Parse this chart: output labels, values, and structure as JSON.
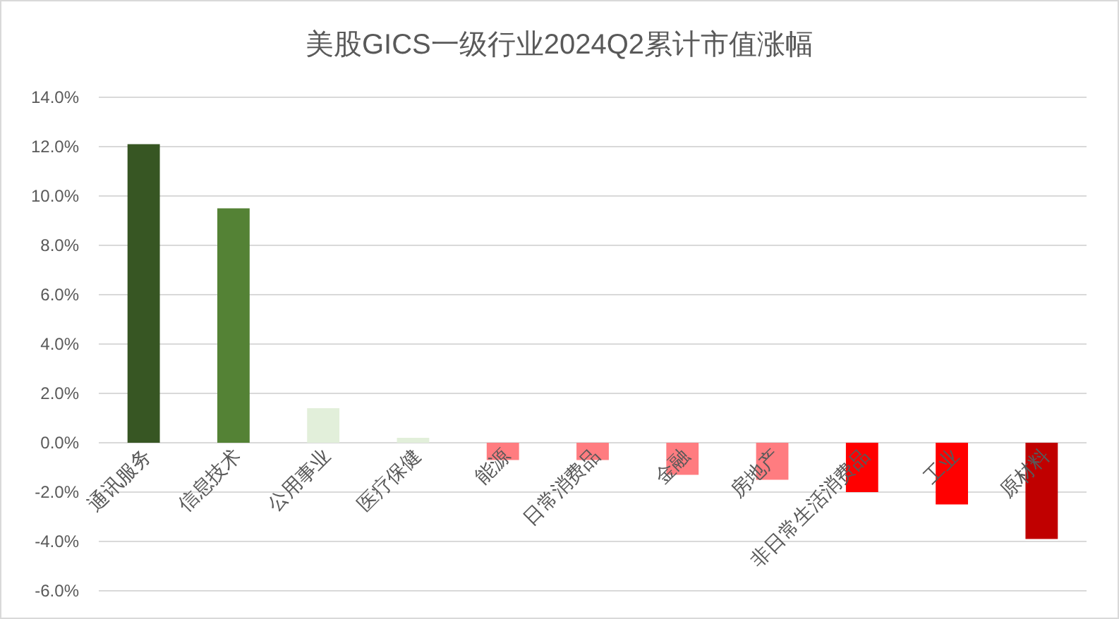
{
  "chart_data": {
    "type": "bar",
    "title": "美股GICS一级行业2024Q2累计市值涨幅",
    "categories": [
      "通讯服务",
      "信息技术",
      "公用事业",
      "医疗保健",
      "能源",
      "日常消费品",
      "金融",
      "房地产",
      "非日常生活消费品",
      "工业",
      "原材料"
    ],
    "values": [
      12.1,
      9.5,
      1.4,
      0.2,
      -0.7,
      -0.7,
      -1.3,
      -1.5,
      -2.0,
      -2.5,
      -3.9
    ],
    "colors": [
      "#375623",
      "#548235",
      "#e2efda",
      "#e2efda",
      "#ff7c80",
      "#ff7c80",
      "#ff7c80",
      "#ff7c80",
      "#ff0000",
      "#ff0000",
      "#c00000"
    ],
    "ylim": [
      -6,
      14
    ],
    "yticks": [
      {
        "value": -6,
        "label": "-6.0%"
      },
      {
        "value": -4,
        "label": "-4.0%"
      },
      {
        "value": -2,
        "label": "-2.0%"
      },
      {
        "value": 0,
        "label": "0.0%"
      },
      {
        "value": 2,
        "label": "2.0%"
      },
      {
        "value": 4,
        "label": "4.0%"
      },
      {
        "value": 6,
        "label": "6.0%"
      },
      {
        "value": 8,
        "label": "8.0%"
      },
      {
        "value": 10,
        "label": "10.0%"
      },
      {
        "value": 12,
        "label": "12.0%"
      },
      {
        "value": 14,
        "label": "14.0%"
      }
    ],
    "grid": "y"
  }
}
